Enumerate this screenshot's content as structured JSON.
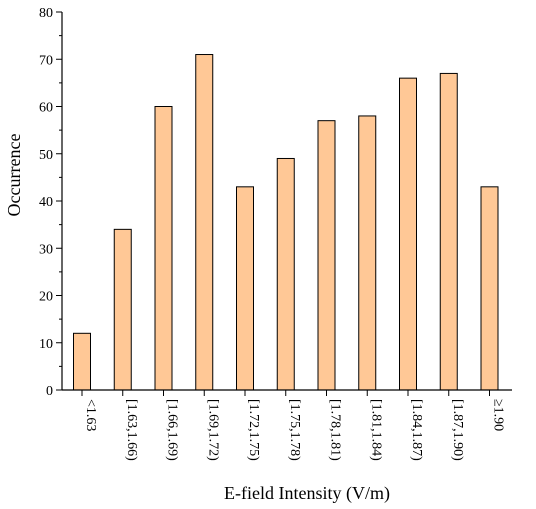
{
  "chart_data": {
    "type": "bar",
    "title": "",
    "xlabel": "E-field Intensity (V/m)",
    "ylabel": "Occurrence",
    "categories": [
      "<1.63",
      "[1.63,1.66)",
      "[1.66,1.69)",
      "[1.69,1.72)",
      "[1.72,1.75)",
      "[1.75,1.78)",
      "[1.78,1.81)",
      "[1.81,1.84)",
      "[1.84,1.87)",
      "[1.87,1.90)",
      "≥1.90"
    ],
    "values": [
      12,
      34,
      60,
      71,
      43,
      49,
      57,
      58,
      66,
      67,
      43
    ],
    "ylim": [
      0,
      80
    ],
    "yticks": [
      "0",
      "10",
      "20",
      "30",
      "40",
      "50",
      "60",
      "70",
      "80"
    ],
    "grid": false,
    "legend": "none",
    "bar_color": "#FFC896"
  }
}
